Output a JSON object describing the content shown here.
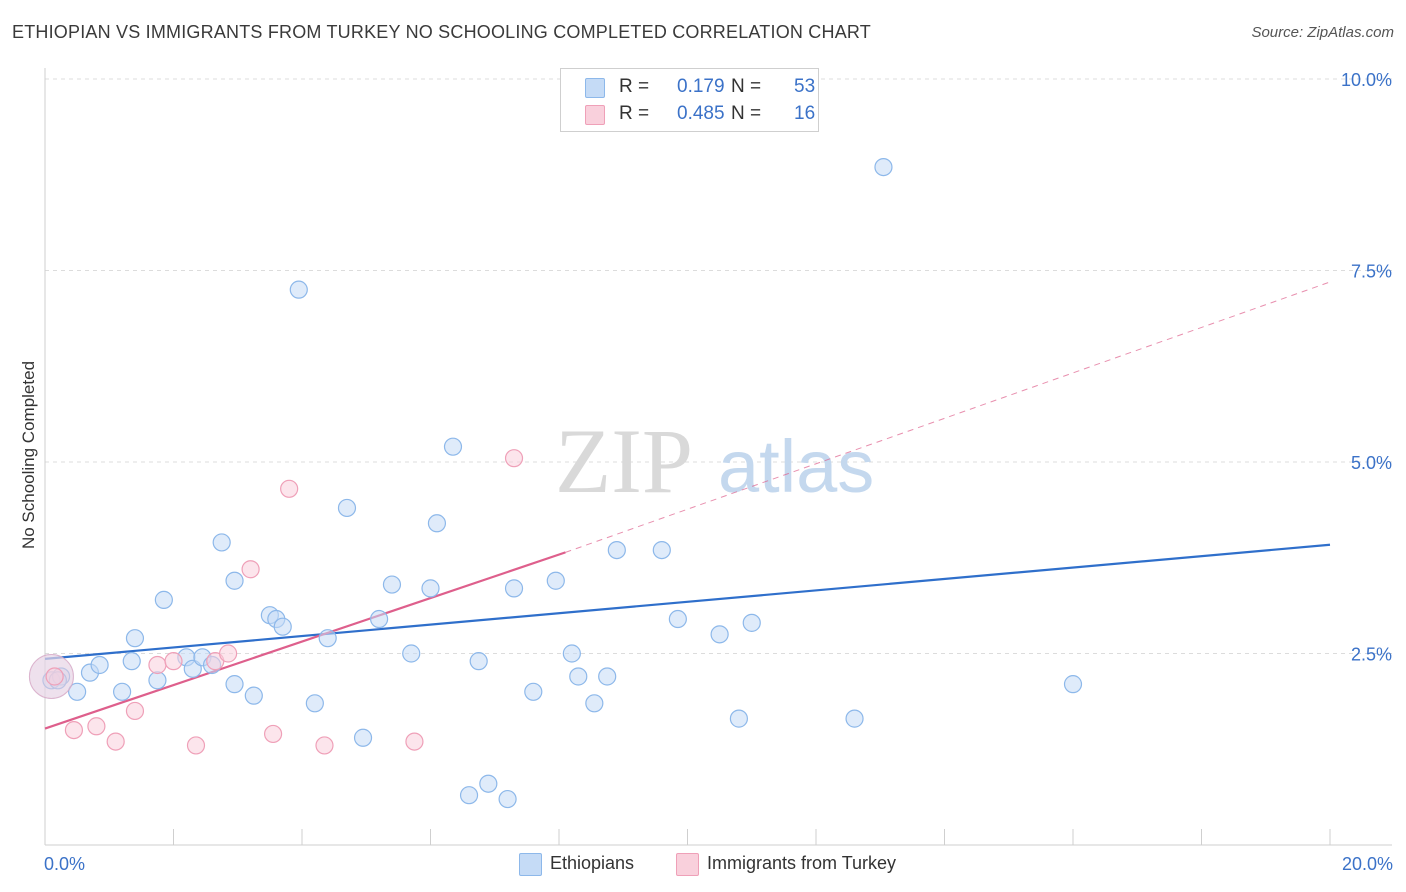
{
  "chart_data": {
    "type": "scatter",
    "title": "ETHIOPIAN VS IMMIGRANTS FROM TURKEY NO SCHOOLING COMPLETED CORRELATION CHART",
    "source": "Source: ZipAtlas.com",
    "xlabel": "",
    "ylabel": "No Schooling Completed",
    "xlim": [
      0,
      20
    ],
    "ylim": [
      0,
      10
    ],
    "x_tick_labels": [
      "0.0%",
      "20.0%"
    ],
    "y_ticks": [
      2.5,
      5.0,
      7.5,
      10.0
    ],
    "y_tick_labels": [
      "2.5%",
      "5.0%",
      "7.5%",
      "10.0%"
    ],
    "grid": true,
    "watermark": {
      "zip": "ZIP",
      "atlas": "atlas"
    },
    "legend_stats": [
      {
        "r_label": "R =",
        "r_value": "0.179",
        "n_label": "N =",
        "n_value": "53"
      },
      {
        "r_label": "R =",
        "r_value": "0.485",
        "n_label": "N =",
        "n_value": "16"
      }
    ],
    "series": [
      {
        "name": "Ethiopians",
        "color": "#8db8ea",
        "fill": "#c5dbf6",
        "line_color": "#2f6fcb",
        "trend": {
          "x": [
            0,
            20
          ],
          "y": [
            2.43,
            3.92
          ]
        },
        "points": [
          [
            0.1,
            2.15
          ],
          [
            0.25,
            2.2
          ],
          [
            0.5,
            2.0
          ],
          [
            0.7,
            2.25
          ],
          [
            0.85,
            2.35
          ],
          [
            1.2,
            2.0
          ],
          [
            1.4,
            2.7
          ],
          [
            1.75,
            2.15
          ],
          [
            1.85,
            3.2
          ],
          [
            2.2,
            2.45
          ],
          [
            2.3,
            2.3
          ],
          [
            2.45,
            2.45
          ],
          [
            2.75,
            3.95
          ],
          [
            2.95,
            3.45
          ],
          [
            2.95,
            2.1
          ],
          [
            3.25,
            1.95
          ],
          [
            3.5,
            3.0
          ],
          [
            3.6,
            2.95
          ],
          [
            3.7,
            2.85
          ],
          [
            3.95,
            7.25
          ],
          [
            4.2,
            1.85
          ],
          [
            4.4,
            2.7
          ],
          [
            4.7,
            4.4
          ],
          [
            4.95,
            1.4
          ],
          [
            5.2,
            2.95
          ],
          [
            5.4,
            3.4
          ],
          [
            5.7,
            2.5
          ],
          [
            6.0,
            3.35
          ],
          [
            6.1,
            4.2
          ],
          [
            6.35,
            5.2
          ],
          [
            6.6,
            0.65
          ],
          [
            6.9,
            0.8
          ],
          [
            7.2,
            0.6
          ],
          [
            6.75,
            2.4
          ],
          [
            7.3,
            3.35
          ],
          [
            7.6,
            2.0
          ],
          [
            7.95,
            3.45
          ],
          [
            8.2,
            2.5
          ],
          [
            8.55,
            1.85
          ],
          [
            8.75,
            2.2
          ],
          [
            8.9,
            3.85
          ],
          [
            9.6,
            3.85
          ],
          [
            9.85,
            2.95
          ],
          [
            10.5,
            2.75
          ],
          [
            10.8,
            1.65
          ],
          [
            11.0,
            2.9
          ],
          [
            12.6,
            1.65
          ],
          [
            13.05,
            8.85
          ],
          [
            16.0,
            2.1
          ],
          [
            0.2,
            2.15
          ],
          [
            1.35,
            2.4
          ],
          [
            2.6,
            2.35
          ],
          [
            8.3,
            2.2
          ]
        ],
        "big_point": [
          0.1,
          2.2
        ]
      },
      {
        "name": "Immigrants from Turkey",
        "color": "#efa0b8",
        "fill": "#f9d0dc",
        "line_color": "#de5f8c",
        "trend": {
          "x": [
            0,
            8.1
          ],
          "y": [
            1.52,
            3.82
          ]
        },
        "trend_ext": {
          "x": [
            8.1,
            20
          ],
          "y": [
            3.82,
            7.35
          ]
        },
        "points": [
          [
            0.45,
            1.5
          ],
          [
            0.8,
            1.55
          ],
          [
            1.1,
            1.35
          ],
          [
            1.4,
            1.75
          ],
          [
            1.75,
            2.35
          ],
          [
            2.0,
            2.4
          ],
          [
            2.35,
            1.3
          ],
          [
            2.65,
            2.4
          ],
          [
            2.85,
            2.5
          ],
          [
            3.2,
            3.6
          ],
          [
            3.55,
            1.45
          ],
          [
            3.8,
            4.65
          ],
          [
            4.35,
            1.3
          ],
          [
            5.75,
            1.35
          ],
          [
            7.3,
            5.05
          ],
          [
            0.15,
            2.2
          ]
        ],
        "big_point": [
          0.1,
          2.2
        ]
      }
    ]
  }
}
